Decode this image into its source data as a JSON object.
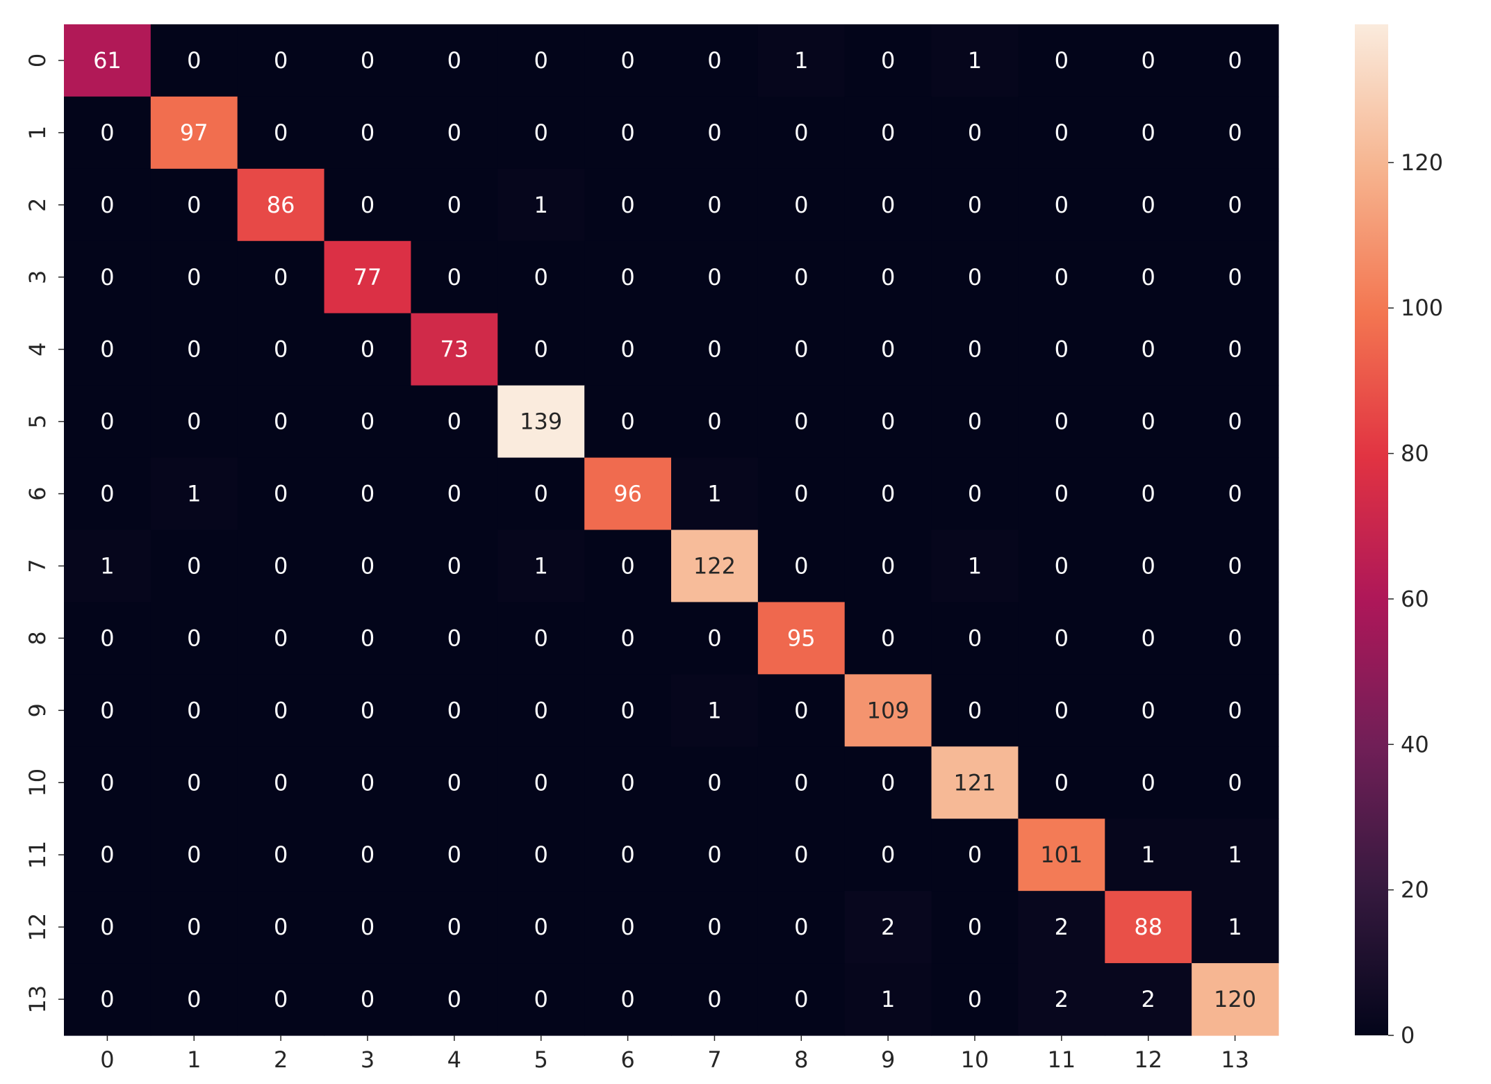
{
  "chart_data": {
    "type": "heatmap",
    "title": "",
    "xlabel": "",
    "ylabel": "",
    "x_tick_labels": [
      "0",
      "1",
      "2",
      "3",
      "4",
      "5",
      "6",
      "7",
      "8",
      "9",
      "10",
      "11",
      "12",
      "13"
    ],
    "y_tick_labels": [
      "0",
      "1",
      "2",
      "3",
      "4",
      "5",
      "6",
      "7",
      "8",
      "9",
      "10",
      "11",
      "12",
      "13"
    ],
    "values": [
      [
        61,
        0,
        0,
        0,
        0,
        0,
        0,
        0,
        1,
        0,
        1,
        0,
        0,
        0
      ],
      [
        0,
        97,
        0,
        0,
        0,
        0,
        0,
        0,
        0,
        0,
        0,
        0,
        0,
        0
      ],
      [
        0,
        0,
        86,
        0,
        0,
        1,
        0,
        0,
        0,
        0,
        0,
        0,
        0,
        0
      ],
      [
        0,
        0,
        0,
        77,
        0,
        0,
        0,
        0,
        0,
        0,
        0,
        0,
        0,
        0
      ],
      [
        0,
        0,
        0,
        0,
        73,
        0,
        0,
        0,
        0,
        0,
        0,
        0,
        0,
        0
      ],
      [
        0,
        0,
        0,
        0,
        0,
        139,
        0,
        0,
        0,
        0,
        0,
        0,
        0,
        0
      ],
      [
        0,
        1,
        0,
        0,
        0,
        0,
        96,
        1,
        0,
        0,
        0,
        0,
        0,
        0
      ],
      [
        1,
        0,
        0,
        0,
        0,
        1,
        0,
        122,
        0,
        0,
        1,
        0,
        0,
        0
      ],
      [
        0,
        0,
        0,
        0,
        0,
        0,
        0,
        0,
        95,
        0,
        0,
        0,
        0,
        0
      ],
      [
        0,
        0,
        0,
        0,
        0,
        0,
        0,
        1,
        0,
        109,
        0,
        0,
        0,
        0
      ],
      [
        0,
        0,
        0,
        0,
        0,
        0,
        0,
        0,
        0,
        0,
        121,
        0,
        0,
        0
      ],
      [
        0,
        0,
        0,
        0,
        0,
        0,
        0,
        0,
        0,
        0,
        0,
        101,
        1,
        1
      ],
      [
        0,
        0,
        0,
        0,
        0,
        0,
        0,
        0,
        0,
        2,
        0,
        2,
        88,
        1
      ],
      [
        0,
        0,
        0,
        0,
        0,
        0,
        0,
        0,
        0,
        1,
        0,
        2,
        2,
        120
      ]
    ],
    "colorbar": {
      "min": 0,
      "max": 139,
      "ticks": [
        0,
        20,
        40,
        60,
        80,
        100,
        120
      ],
      "tick_labels": [
        "0",
        "20",
        "40",
        "60",
        "80",
        "100",
        "120"
      ],
      "colormap": "rocket"
    },
    "grid": false,
    "legend": "colorbar-right",
    "annot_dark_text_color": "#262626",
    "annot_light_text_color": "#ffffff",
    "colors": {
      "rocket_stops": [
        "#03051a",
        "#35193e",
        "#701f57",
        "#ad1759",
        "#e13342",
        "#f37651",
        "#f6b48f",
        "#faebdd"
      ]
    }
  }
}
